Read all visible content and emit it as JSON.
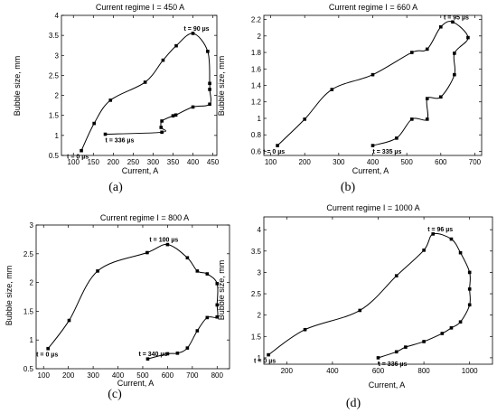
{
  "chart_data": [
    {
      "type": "line",
      "panel_label": "(a)",
      "title": "Current regime I = 450 A",
      "xlabel": "Current, A",
      "ylabel": "Bubble size, mm",
      "xlim": [
        70,
        460
      ],
      "ylim": [
        0.5,
        4.0
      ],
      "xticks": [
        100,
        150,
        200,
        250,
        300,
        350,
        400,
        450
      ],
      "yticks": [
        0.5,
        1.0,
        1.5,
        2.0,
        2.5,
        3.0,
        3.5,
        4.0
      ],
      "x": [
        120,
        152,
        193,
        280,
        325,
        358,
        400,
        437,
        442,
        442,
        442,
        400,
        357,
        350,
        322,
        320,
        322,
        180
      ],
      "y": [
        0.62,
        1.3,
        1.88,
        2.33,
        2.88,
        3.24,
        3.55,
        3.1,
        2.3,
        2.15,
        1.78,
        1.71,
        1.51,
        1.49,
        1.36,
        1.2,
        1.08,
        1.03
      ],
      "annotations": [
        {
          "text": "t = 90 µs",
          "x": 400,
          "y": 3.55
        },
        {
          "text": "t = 0 µs",
          "x": 120,
          "y": 0.62
        },
        {
          "text": "t = 336 µs",
          "x": 180,
          "y": 1.03
        }
      ]
    },
    {
      "type": "line",
      "panel_label": "(b)",
      "title": "Current regime I = 660 A",
      "xlabel": "Current, A",
      "ylabel": "Bubble size, mm",
      "xlim": [
        80,
        720
      ],
      "ylim": [
        0.55,
        2.25
      ],
      "xticks": [
        100,
        200,
        300,
        400,
        500,
        600,
        700
      ],
      "yticks": [
        0.6,
        0.8,
        1.0,
        1.2,
        1.4,
        1.6,
        1.8,
        2.0,
        2.2
      ],
      "x": [
        120,
        200,
        280,
        400,
        515,
        560,
        600,
        635,
        680,
        640,
        640,
        600,
        560,
        560,
        515,
        470,
        400
      ],
      "y": [
        0.67,
        0.99,
        1.35,
        1.53,
        1.8,
        1.84,
        2.11,
        2.17,
        1.98,
        1.79,
        1.53,
        1.26,
        1.24,
        0.99,
        0.99,
        0.76,
        0.67
      ],
      "annotations": [
        {
          "text": "t = 95 µs",
          "x": 635,
          "y": 2.17
        },
        {
          "text": "t = 0 µs",
          "x": 120,
          "y": 0.67
        },
        {
          "text": "t = 335 µs",
          "x": 400,
          "y": 0.67
        }
      ]
    },
    {
      "type": "line",
      "panel_label": "(c)",
      "title": "Current regime I = 800 A",
      "xlabel": "Current, A",
      "ylabel": "Bubble size, mm",
      "xlim": [
        70,
        850
      ],
      "ylim": [
        0.5,
        3.0
      ],
      "xticks": [
        100,
        200,
        300,
        400,
        500,
        600,
        700,
        800
      ],
      "yticks": [
        0.5,
        1.0,
        1.5,
        2.0,
        2.5,
        3.0
      ],
      "x": [
        118,
        203,
        318,
        518,
        600,
        680,
        720,
        760,
        800,
        800,
        800,
        760,
        720,
        680,
        640,
        600,
        520
      ],
      "y": [
        0.85,
        1.34,
        2.2,
        2.52,
        2.66,
        2.43,
        2.2,
        2.15,
        1.98,
        1.61,
        1.4,
        1.39,
        1.16,
        0.86,
        0.77,
        0.76,
        0.67
      ],
      "annotations": [
        {
          "text": "t = 100 µs",
          "x": 600,
          "y": 2.66
        },
        {
          "text": "t = 0 µs",
          "x": 118,
          "y": 0.85
        },
        {
          "text": "t = 340 µs",
          "x": 520,
          "y": 0.67
        }
      ]
    },
    {
      "type": "line",
      "panel_label": "(d)",
      "title": "Current regime I = 1000 A",
      "xlabel": "Current, A",
      "ylabel": "Bubble size, mm",
      "xlim": [
        100,
        1100
      ],
      "ylim": [
        0.85,
        4.3
      ],
      "xticks": [
        200,
        400,
        600,
        800,
        1000
      ],
      "yticks": [
        1.0,
        1.5,
        2.0,
        2.5,
        3.0,
        3.5,
        4.0
      ],
      "x": [
        120,
        280,
        520,
        680,
        800,
        840,
        920,
        960,
        1000,
        1000,
        1000,
        960,
        920,
        880,
        800,
        720,
        680,
        600
      ],
      "y": [
        1.07,
        1.66,
        2.11,
        2.92,
        3.52,
        3.9,
        3.78,
        3.46,
        3.0,
        2.61,
        2.24,
        1.84,
        1.7,
        1.57,
        1.38,
        1.25,
        1.14,
        1.0
      ],
      "annotations": [
        {
          "text": "t = 96 µs",
          "x": 840,
          "y": 3.9
        },
        {
          "text": "t = 0 µs",
          "x": 120,
          "y": 1.07
        },
        {
          "text": "t = 336 µs",
          "x": 600,
          "y": 1.0
        }
      ]
    }
  ]
}
